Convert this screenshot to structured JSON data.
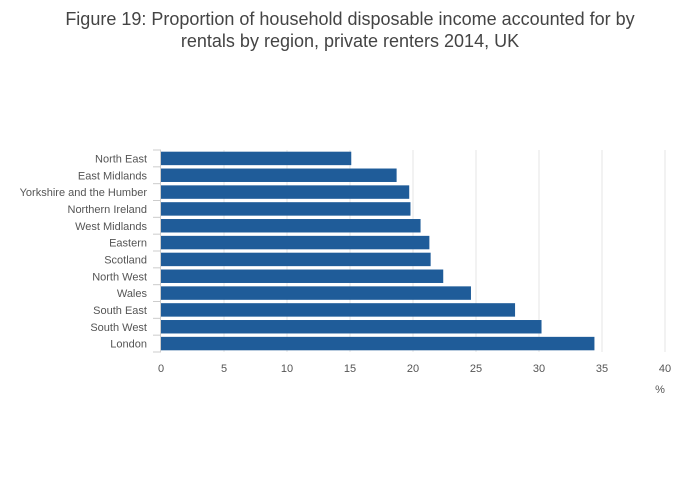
{
  "chart_data": {
    "type": "bar",
    "orientation": "horizontal",
    "title_lines": [
      "Figure 19: Proportion of household disposable income accounted for by",
      "rentals by region, private renters 2014, UK"
    ],
    "categories": [
      "North East",
      "East Midlands",
      "Yorkshire and the Humber",
      "Northern Ireland",
      "West Midlands",
      "Eastern",
      "Scotland",
      "North West",
      "Wales",
      "South East",
      "South West",
      "London"
    ],
    "values": [
      15.1,
      18.7,
      19.7,
      19.8,
      20.6,
      21.3,
      21.4,
      22.4,
      24.6,
      28.1,
      30.2,
      34.4
    ],
    "xlabel": "%",
    "ylabel": "",
    "xlim": [
      0,
      40
    ],
    "xticks": [
      "0",
      "5",
      "10",
      "15",
      "20",
      "25",
      "30",
      "35",
      "40"
    ],
    "xtick_values": [
      0,
      5,
      10,
      15,
      20,
      25,
      30,
      35,
      40
    ],
    "grid": true,
    "legend": "none",
    "bar_color": "#1f5c99",
    "grid_color": "#e6e6e6",
    "axis_color": "#cccccc"
  }
}
